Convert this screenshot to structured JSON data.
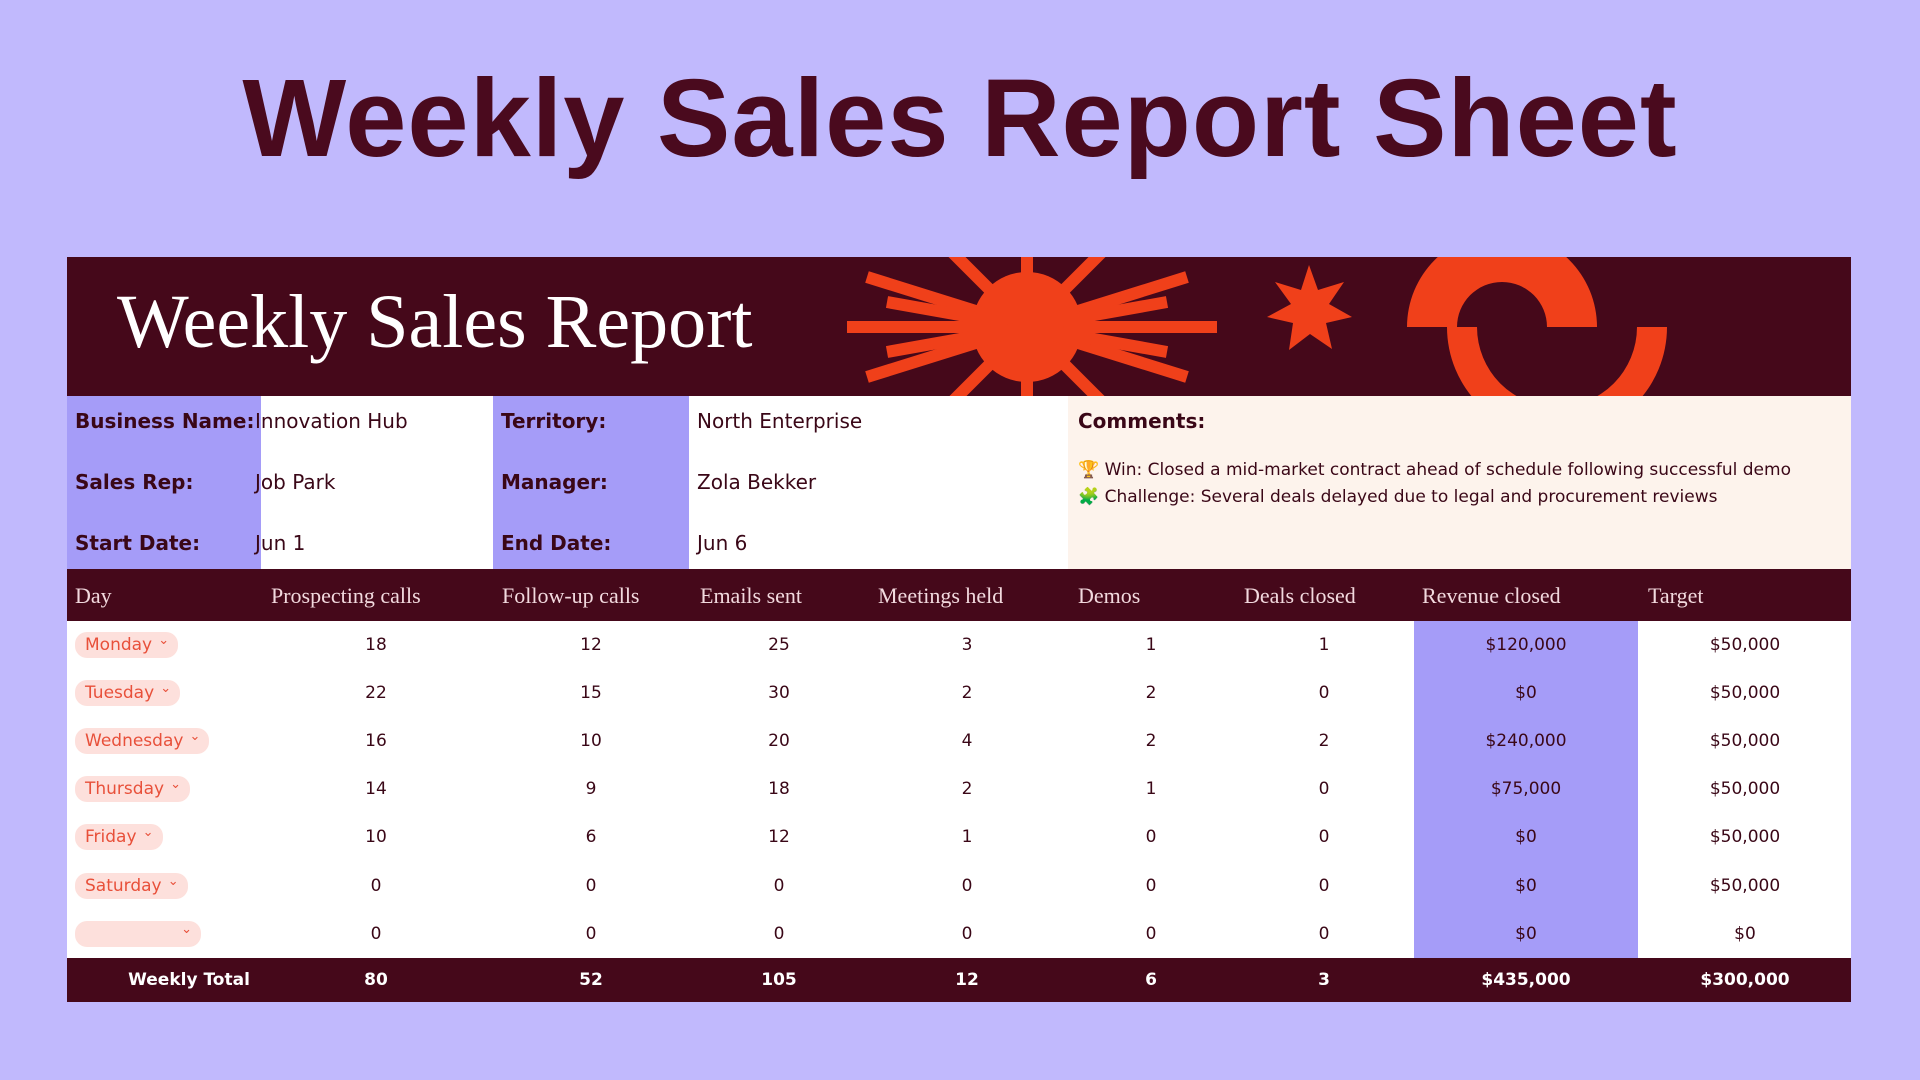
{
  "header": {
    "title": "Weekly Sales Report Sheet"
  },
  "banner": {
    "title": "Weekly Sales Report"
  },
  "info": {
    "rows": [
      [
        "Business Name:",
        "Innovation Hub",
        "Territory:",
        "North Enterprise"
      ],
      [
        "Sales Rep:",
        "Job Park",
        "Manager:",
        "Zola Bekker"
      ],
      [
        "Start Date:",
        "Jun 1",
        "End Date:",
        "Jun 6"
      ]
    ]
  },
  "comments": {
    "label": "Comments:",
    "lines": [
      "🏆 Win: Closed a mid-market contract ahead of schedule following successful demo",
      "🧩 Challenge: Several deals delayed due to legal and procurement reviews"
    ]
  },
  "table": {
    "columns": [
      "Day",
      "Prospecting calls",
      "Follow-up calls",
      "Emails sent",
      "Meetings held",
      "Demos",
      "Deals closed",
      "Revenue closed",
      "Target"
    ],
    "rows": [
      [
        "Monday",
        "18",
        "12",
        "25",
        "3",
        "1",
        "1",
        "$120,000",
        "$50,000"
      ],
      [
        "Tuesday",
        "22",
        "15",
        "30",
        "2",
        "2",
        "0",
        "$0",
        "$50,000"
      ],
      [
        "Wednesday",
        "16",
        "10",
        "20",
        "4",
        "2",
        "2",
        "$240,000",
        "$50,000"
      ],
      [
        "Thursday",
        "14",
        "9",
        "18",
        "2",
        "1",
        "0",
        "$75,000",
        "$50,000"
      ],
      [
        "Friday",
        "10",
        "6",
        "12",
        "1",
        "0",
        "0",
        "$0",
        "$50,000"
      ],
      [
        "Saturday",
        "0",
        "0",
        "0",
        "0",
        "0",
        "0",
        "$0",
        "$50,000"
      ],
      [
        null,
        "0",
        "0",
        "0",
        "0",
        "0",
        "0",
        "$0",
        "$0"
      ]
    ],
    "total": [
      "Weekly Total",
      "80",
      "52",
      "105",
      "12",
      "6",
      "3",
      "$435,000",
      "$300,000"
    ]
  }
}
